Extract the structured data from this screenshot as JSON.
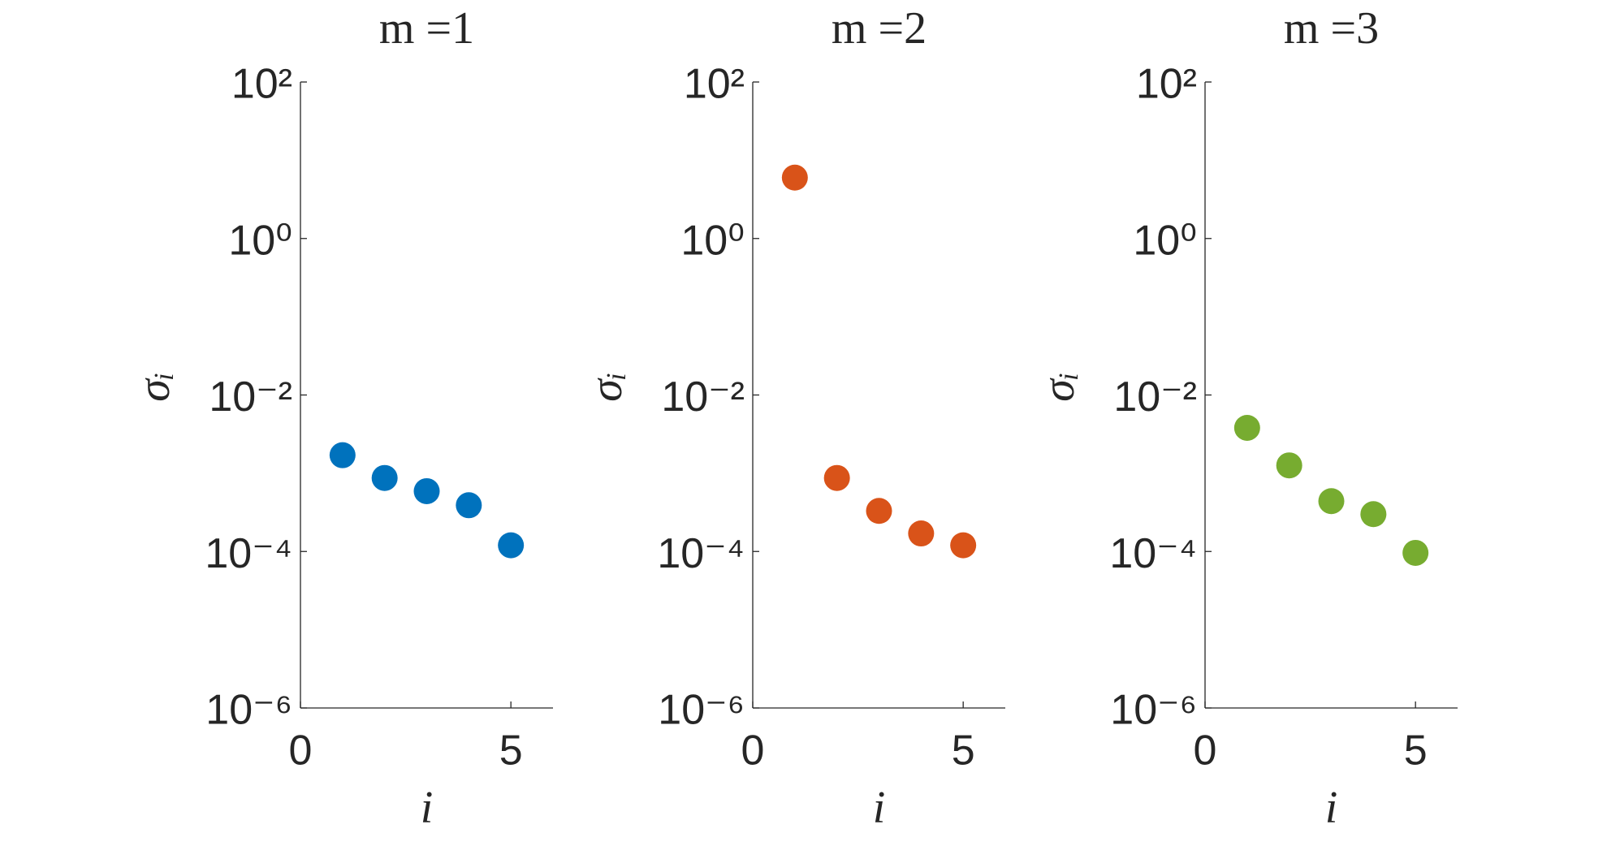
{
  "chart_data": [
    {
      "type": "scatter",
      "title": "m =1",
      "xlabel": "i",
      "ylabel": "σᵢ",
      "color": "#0072bd",
      "x": [
        1,
        2,
        3,
        4,
        5
      ],
      "values": [
        0.0017,
        0.00087,
        0.00059,
        0.00039,
        0.00012
      ],
      "xlim": [
        0,
        6
      ],
      "xticks": [
        0,
        5
      ],
      "ylim": [
        1e-06,
        100
      ],
      "log_y": true,
      "yticks": [
        {
          "value": 1e-06,
          "label": "10⁻⁶"
        },
        {
          "value": 0.0001,
          "label": "10⁻⁴"
        },
        {
          "value": 0.01,
          "label": "10⁻²"
        },
        {
          "value": 1,
          "label": "10⁰"
        },
        {
          "value": 100,
          "label": "10²"
        }
      ]
    },
    {
      "type": "scatter",
      "title": "m =2",
      "xlabel": "i",
      "ylabel": "σᵢ",
      "color": "#d95319",
      "x": [
        1,
        2,
        3,
        4,
        5
      ],
      "values": [
        6.0,
        0.00087,
        0.00033,
        0.00017,
        0.00012
      ],
      "xlim": [
        0,
        6
      ],
      "xticks": [
        0,
        5
      ],
      "ylim": [
        1e-06,
        100
      ],
      "log_y": true,
      "yticks": [
        {
          "value": 1e-06,
          "label": "10⁻⁶"
        },
        {
          "value": 0.0001,
          "label": "10⁻⁴"
        },
        {
          "value": 0.01,
          "label": "10⁻²"
        },
        {
          "value": 1,
          "label": "10⁰"
        },
        {
          "value": 100,
          "label": "10²"
        }
      ]
    },
    {
      "type": "scatter",
      "title": "m =3",
      "xlabel": "i",
      "ylabel": "σᵢ",
      "color": "#77ac30",
      "x": [
        1,
        2,
        3,
        4,
        5
      ],
      "values": [
        0.0038,
        0.00126,
        0.00044,
        0.0003,
        9.6e-05
      ],
      "xlim": [
        0,
        6
      ],
      "xticks": [
        0,
        5
      ],
      "ylim": [
        1e-06,
        100
      ],
      "log_y": true,
      "yticks": [
        {
          "value": 1e-06,
          "label": "10⁻⁶"
        },
        {
          "value": 0.0001,
          "label": "10⁻⁴"
        },
        {
          "value": 0.01,
          "label": "10⁻²"
        },
        {
          "value": 1,
          "label": "10⁰"
        },
        {
          "value": 100,
          "label": "10²"
        }
      ]
    }
  ]
}
